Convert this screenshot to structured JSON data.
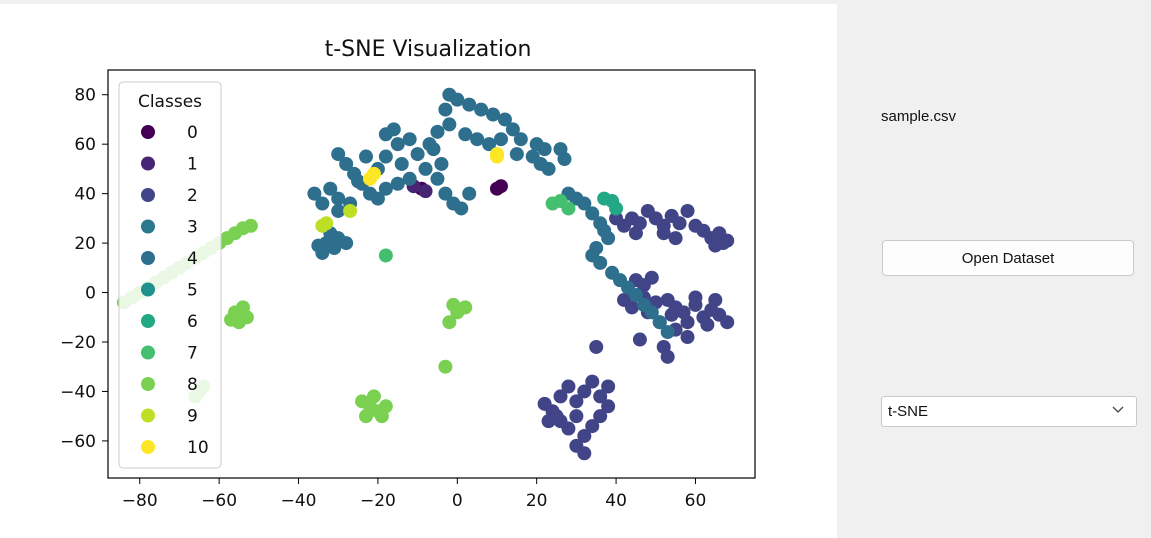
{
  "chart_data": {
    "type": "scatter",
    "title": "t-SNE Visualization",
    "xlabel": "",
    "ylabel": "",
    "xlim": [
      -88,
      75
    ],
    "ylim": [
      -75,
      90
    ],
    "xticks": [
      -80,
      -60,
      -40,
      -20,
      0,
      20,
      40,
      60
    ],
    "yticks": [
      -60,
      -40,
      -20,
      0,
      20,
      40,
      60,
      80
    ],
    "legend": {
      "title": "Classes",
      "placement": "upper-left"
    },
    "series": [
      {
        "name": "0",
        "color": "#440154",
        "points": [
          [
            -9,
            42
          ],
          [
            10,
            42
          ],
          [
            11,
            43
          ]
        ]
      },
      {
        "name": "1",
        "color": "#482475",
        "points": [
          [
            -11,
            43
          ],
          [
            -8,
            41
          ]
        ]
      },
      {
        "name": "2",
        "color": "#414487",
        "points": [
          [
            40,
            30
          ],
          [
            42,
            27
          ],
          [
            44,
            30
          ],
          [
            46,
            28
          ],
          [
            48,
            33
          ],
          [
            50,
            30
          ],
          [
            52,
            27
          ],
          [
            54,
            31
          ],
          [
            56,
            28
          ],
          [
            58,
            33
          ],
          [
            60,
            27
          ],
          [
            45,
            24
          ],
          [
            52,
            24
          ],
          [
            55,
            22
          ],
          [
            62,
            25
          ],
          [
            64,
            22
          ],
          [
            66,
            24
          ],
          [
            68,
            21
          ],
          [
            65,
            19
          ],
          [
            67,
            20
          ],
          [
            45,
            5
          ],
          [
            47,
            3
          ],
          [
            49,
            6
          ],
          [
            47,
            -2
          ],
          [
            50,
            -4
          ],
          [
            53,
            -3
          ],
          [
            55,
            -6
          ],
          [
            57,
            -8
          ],
          [
            60,
            -5
          ],
          [
            62,
            -10
          ],
          [
            64,
            -7
          ],
          [
            66,
            -9
          ],
          [
            68,
            -12
          ],
          [
            63,
            -13
          ],
          [
            58,
            -12
          ],
          [
            54,
            -9
          ],
          [
            51,
            -12
          ],
          [
            48,
            -8
          ],
          [
            42,
            -3
          ],
          [
            44,
            -6
          ],
          [
            60,
            -2
          ],
          [
            65,
            -3
          ],
          [
            55,
            -15
          ],
          [
            58,
            -18
          ],
          [
            52,
            -22
          ],
          [
            53,
            -26
          ],
          [
            46,
            -19
          ],
          [
            22,
            -45
          ],
          [
            24,
            -48
          ],
          [
            26,
            -42
          ],
          [
            28,
            -38
          ],
          [
            30,
            -44
          ],
          [
            32,
            -40
          ],
          [
            34,
            -36
          ],
          [
            36,
            -42
          ],
          [
            38,
            -46
          ],
          [
            36,
            -50
          ],
          [
            34,
            -54
          ],
          [
            32,
            -58
          ],
          [
            30,
            -62
          ],
          [
            32,
            -65
          ],
          [
            28,
            -55
          ],
          [
            26,
            -52
          ],
          [
            30,
            -50
          ],
          [
            38,
            -38
          ],
          [
            35,
            -22
          ],
          [
            25,
            -50
          ],
          [
            23,
            -52
          ]
        ]
      },
      {
        "name": "3",
        "color": "#2a788e",
        "points": []
      },
      {
        "name": "4",
        "color": "#2e6f8e",
        "points": [
          [
            -2,
            80
          ],
          [
            0,
            78
          ],
          [
            3,
            76
          ],
          [
            6,
            74
          ],
          [
            9,
            72
          ],
          [
            12,
            70
          ],
          [
            14,
            66
          ],
          [
            16,
            62
          ],
          [
            20,
            60
          ],
          [
            22,
            58
          ],
          [
            -3,
            74
          ],
          [
            -2,
            68
          ],
          [
            2,
            64
          ],
          [
            5,
            62
          ],
          [
            8,
            60
          ],
          [
            11,
            62
          ],
          [
            15,
            56
          ],
          [
            19,
            55
          ],
          [
            21,
            52
          ],
          [
            23,
            50
          ],
          [
            26,
            58
          ],
          [
            27,
            54
          ],
          [
            -5,
            65
          ],
          [
            -7,
            60
          ],
          [
            -20,
            50
          ],
          [
            -18,
            55
          ],
          [
            -15,
            60
          ],
          [
            -12,
            62
          ],
          [
            -10,
            56
          ],
          [
            -14,
            52
          ],
          [
            -12,
            46
          ],
          [
            -15,
            44
          ],
          [
            -18,
            42
          ],
          [
            -20,
            38
          ],
          [
            -22,
            40
          ],
          [
            -24,
            44
          ],
          [
            -26,
            48
          ],
          [
            -28,
            52
          ],
          [
            -30,
            56
          ],
          [
            -23,
            55
          ],
          [
            -16,
            66
          ],
          [
            -18,
            64
          ],
          [
            -8,
            50
          ],
          [
            -5,
            46
          ],
          [
            -3,
            40
          ],
          [
            -1,
            36
          ],
          [
            1,
            34
          ],
          [
            -4,
            52
          ],
          [
            -6,
            58
          ],
          [
            3,
            40
          ],
          [
            -36,
            40
          ],
          [
            -32,
            42
          ],
          [
            -30,
            38
          ],
          [
            -34,
            36
          ],
          [
            -30,
            33
          ],
          [
            -27,
            36
          ],
          [
            -25,
            45
          ],
          [
            -35,
            19
          ],
          [
            -33,
            20
          ],
          [
            -31,
            18
          ],
          [
            -32,
            24
          ],
          [
            -30,
            22
          ],
          [
            -34,
            16
          ],
          [
            -28,
            20
          ],
          [
            28,
            40
          ],
          [
            30,
            38
          ],
          [
            32,
            36
          ],
          [
            34,
            32
          ],
          [
            36,
            28
          ],
          [
            37,
            25
          ],
          [
            38,
            22
          ],
          [
            35,
            18
          ],
          [
            34,
            15
          ],
          [
            36,
            12
          ],
          [
            39,
            8
          ],
          [
            41,
            5
          ],
          [
            43,
            2
          ],
          [
            45,
            -1
          ],
          [
            47,
            -5
          ],
          [
            49,
            -8
          ],
          [
            51,
            -12
          ],
          [
            53,
            -16
          ]
        ]
      },
      {
        "name": "5",
        "color": "#21918c",
        "points": []
      },
      {
        "name": "6",
        "color": "#22a884",
        "points": [
          [
            39,
            37
          ],
          [
            40,
            34
          ],
          [
            37,
            38
          ]
        ]
      },
      {
        "name": "7",
        "color": "#44bf70",
        "points": [
          [
            24,
            36
          ],
          [
            26,
            37
          ],
          [
            28,
            34
          ],
          [
            -18,
            15
          ]
        ]
      },
      {
        "name": "8",
        "color": "#7ad151",
        "points": [
          [
            -52,
            27
          ],
          [
            -54,
            26
          ],
          [
            -56,
            24
          ],
          [
            -58,
            22
          ],
          [
            -60,
            20
          ],
          [
            -62,
            18
          ],
          [
            -64,
            16
          ],
          [
            -66,
            14
          ],
          [
            -68,
            12
          ],
          [
            -70,
            10
          ],
          [
            -72,
            8
          ],
          [
            -74,
            6
          ],
          [
            -76,
            4
          ],
          [
            -78,
            2
          ],
          [
            -80,
            0
          ],
          [
            -82,
            -2
          ],
          [
            -84,
            -4
          ],
          [
            -56,
            -8
          ],
          [
            -55,
            -12
          ],
          [
            -53,
            -10
          ],
          [
            -57,
            -11
          ],
          [
            -54,
            -6
          ],
          [
            -1,
            -5
          ],
          [
            0,
            -8
          ],
          [
            2,
            -6
          ],
          [
            -2,
            -12
          ],
          [
            -3,
            -30
          ],
          [
            -24,
            -44
          ],
          [
            -22,
            -46
          ],
          [
            -20,
            -48
          ],
          [
            -18,
            -46
          ],
          [
            -21,
            -42
          ],
          [
            -23,
            -50
          ],
          [
            -19,
            -50
          ],
          [
            -65,
            -40
          ],
          [
            -64,
            -38
          ],
          [
            -66,
            -42
          ]
        ]
      },
      {
        "name": "9",
        "color": "#bddf26",
        "points": [
          [
            -34,
            27
          ],
          [
            -33,
            28
          ],
          [
            -27,
            33
          ]
        ]
      },
      {
        "name": "10",
        "color": "#fde725",
        "points": [
          [
            -22,
            46
          ],
          [
            -21,
            48
          ],
          [
            10,
            55
          ],
          [
            10,
            56
          ]
        ]
      }
    ]
  },
  "sidebar": {
    "file_name": "sample.csv",
    "open_button_label": "Open Dataset",
    "method_select": {
      "selected": "t-SNE"
    }
  }
}
